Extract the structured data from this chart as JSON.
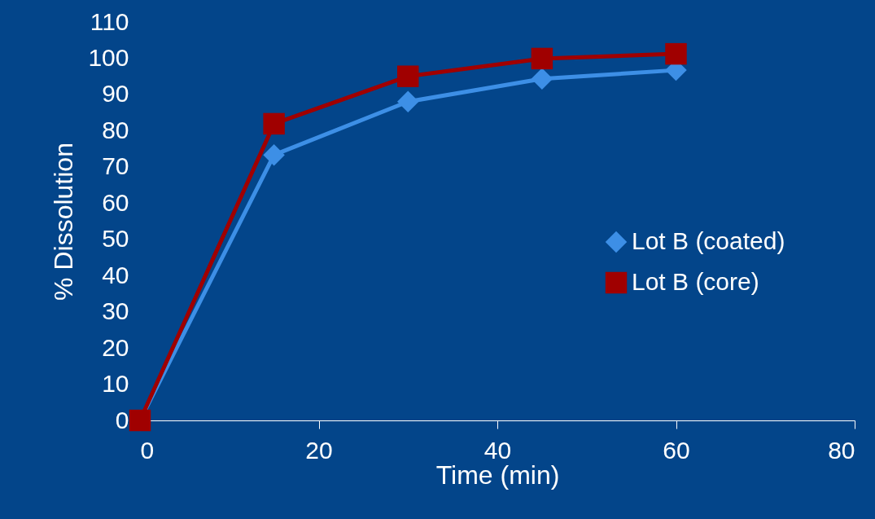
{
  "chart_data": {
    "type": "line",
    "xlabel": "Time (min)",
    "ylabel": "% Dissolution",
    "x": [
      0,
      15,
      30,
      45,
      60
    ],
    "series": [
      {
        "name": "Lot B (coated)",
        "color": "#3d8fe6",
        "marker": "diamond",
        "values": [
          0,
          73.3,
          88,
          94.3,
          96.7
        ]
      },
      {
        "name": "Lot B (core)",
        "color": "#a00000",
        "marker": "square",
        "values": [
          0,
          81.9,
          95,
          99.9,
          101.2
        ]
      }
    ],
    "xlim": [
      0,
      80
    ],
    "xticks": [
      0,
      20,
      40,
      60,
      80
    ],
    "ylim": [
      0,
      110
    ],
    "yticks": [
      0,
      10,
      20,
      30,
      40,
      50,
      60,
      70,
      80,
      90,
      100,
      110
    ],
    "grid": false,
    "legend": "right",
    "line_style": "solid"
  }
}
